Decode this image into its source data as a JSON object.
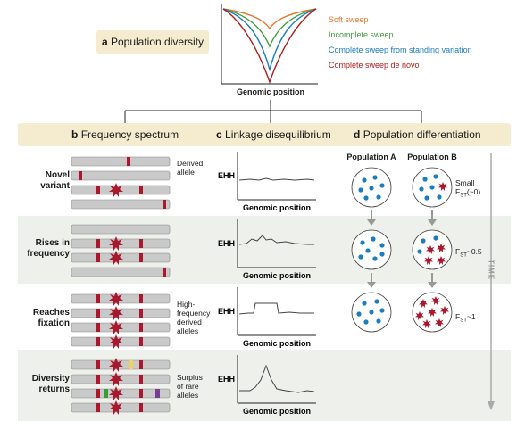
{
  "panel_a": {
    "letter": "a",
    "title": "Population diversity",
    "xlabel": "Genomic position",
    "legend": [
      {
        "label": "Soft sweep",
        "color": "#e8742c"
      },
      {
        "label": "Incomplete sweep",
        "color": "#3f9a3a"
      },
      {
        "label": "Complete sweep from standing variation",
        "color": "#1a7dc0"
      },
      {
        "label": "Complete sweep de novo",
        "color": "#b01c1c"
      }
    ]
  },
  "headers": {
    "b_letter": "b",
    "b_title": "Frequency spectrum",
    "c_letter": "c",
    "c_title": "Linkage disequilibrium",
    "d_letter": "d",
    "d_title": "Population differentiation"
  },
  "rows": [
    {
      "label1": "Novel",
      "label2": "variant",
      "side1": "Derived",
      "side2": "allele",
      "side3": ""
    },
    {
      "label1": "Rises in",
      "label2": "frequency",
      "side1": "",
      "side2": "",
      "side3": ""
    },
    {
      "label1": "Reaches",
      "label2": "fixation",
      "side1": "High-",
      "side2": "frequency",
      "side3": "derived",
      "side4": "alleles"
    },
    {
      "label1": "Diversity",
      "label2": "returns",
      "side1": "Surplus",
      "side2": "of rare",
      "side3": "alleles"
    }
  ],
  "ld": {
    "ylabel": "EHH",
    "xlabel": "Genomic position"
  },
  "differentiation": {
    "pop_a": "Population A",
    "pop_b": "Population B",
    "fst": [
      {
        "prefix": "Small",
        "main": "F",
        "sub": "ST",
        "suffix": "(~0)"
      },
      {
        "prefix": "",
        "main": "F",
        "sub": "ST",
        "suffix": "~0.5"
      },
      {
        "prefix": "",
        "main": "F",
        "sub": "ST",
        "suffix": "~1"
      }
    ]
  },
  "time_label": "TIME",
  "colors": {
    "header_bg": "#f5ebcf",
    "row_bg": "#eef0ec",
    "chrom": "#c9c9c9",
    "mark": "#a8192e",
    "dot_blue": "#1a7dc0",
    "rare_green": "#3a9a3a",
    "rare_yellow": "#f0d060",
    "rare_purple": "#7b3a96"
  }
}
